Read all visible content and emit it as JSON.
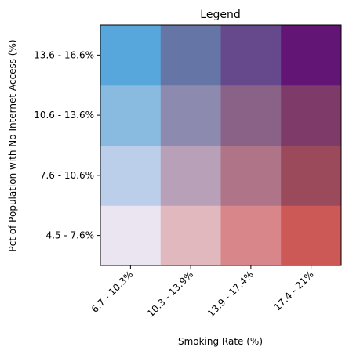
{
  "chart_data": {
    "type": "heatmap",
    "title": "Legend",
    "xlabel": "Smoking Rate (%)",
    "ylabel": "Pct of Population with No Internet Access (%)",
    "x_categories": [
      "6.7 - 10.3%",
      "10.3 - 13.9%",
      "13.9 - 17.4%",
      "17.4 - 21%"
    ],
    "y_categories": [
      "4.5 - 7.6%",
      "7.6 - 10.6%",
      "10.6 - 13.6%",
      "13.6 - 16.6%"
    ],
    "cell_colors": [
      [
        "#ebe4f1",
        "#e2b8bf",
        "#d9868a",
        "#cd5957"
      ],
      [
        "#bccfea",
        "#b8a0b8",
        "#b07488",
        "#9b4a5c"
      ],
      [
        "#89bbe0",
        "#8d8ab0",
        "#8a6288",
        "#7e3a69"
      ],
      [
        "#58a7dc",
        "#6475a6",
        "#66498d",
        "#621574"
      ]
    ],
    "grid": false
  }
}
